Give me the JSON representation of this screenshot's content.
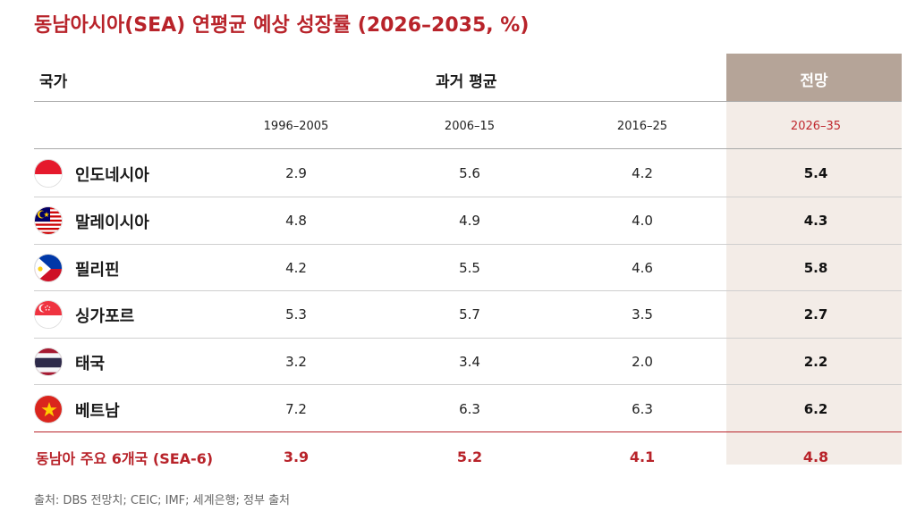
{
  "title": "동남아시아(SEA) 연평균 예상 성장률 (2026–2035, %)",
  "headers": {
    "country": "국가",
    "past": "과거 평균",
    "forecast": "전망"
  },
  "periods": [
    "1996–2005",
    "2006–15",
    "2016–25",
    "2026–35"
  ],
  "rows": [
    {
      "flag": "indonesia-flag-icon",
      "name": "인도네시아",
      "values": [
        "2.9",
        "5.6",
        "4.2",
        "5.4"
      ]
    },
    {
      "flag": "malaysia-flag-icon",
      "name": "말레이시아",
      "values": [
        "4.8",
        "4.9",
        "4.0",
        "4.3"
      ]
    },
    {
      "flag": "philippines-flag-icon",
      "name": "필리핀",
      "values": [
        "4.2",
        "5.5",
        "4.6",
        "5.8"
      ]
    },
    {
      "flag": "singapore-flag-icon",
      "name": "싱가포르",
      "values": [
        "5.3",
        "5.7",
        "3.5",
        "2.7"
      ]
    },
    {
      "flag": "thailand-flag-icon",
      "name": "태국",
      "values": [
        "3.2",
        "3.4",
        "2.0",
        "2.2"
      ]
    },
    {
      "flag": "vietnam-flag-icon",
      "name": "베트남",
      "values": [
        "7.2",
        "6.3",
        "6.3",
        "6.2"
      ]
    }
  ],
  "aggregate": {
    "name": "동남아 주요 6개국 (SEA-6)",
    "values": [
      "3.9",
      "5.2",
      "4.1",
      "4.8"
    ]
  },
  "source": "출처: DBS 전망치; CEIC; IMF; 세계은행; 정부 출처",
  "colors": {
    "accent": "#b8232a",
    "forecast_header": "#b5a498",
    "forecast_column": "#f3ece7"
  }
}
